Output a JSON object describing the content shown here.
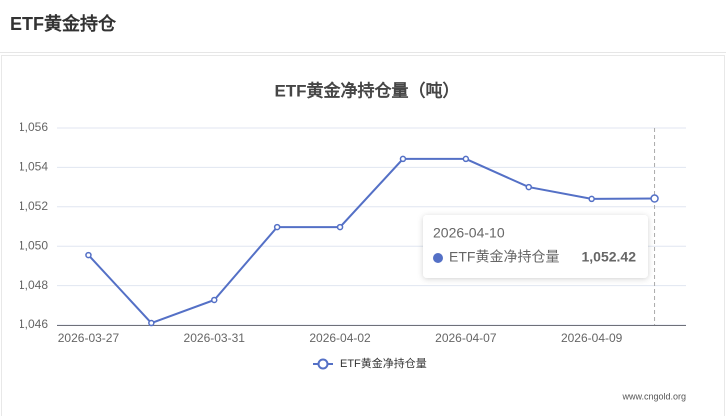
{
  "header": {
    "title": "ETF黄金持仓"
  },
  "chart_data": {
    "type": "line",
    "title": "ETF黄金净持仓量（吨）",
    "categories": [
      "2026-03-27",
      null,
      "2026-03-31",
      null,
      "2026-04-02",
      null,
      "2026-04-07",
      null,
      "2026-04-09",
      null
    ],
    "series": [
      {
        "name": "ETF黄金净持仓量",
        "color": "#5470c6",
        "values": [
          1049.55,
          1046.1,
          1047.27,
          1050.97,
          1050.97,
          1054.43,
          1054.43,
          1053.0,
          1052.4,
          1052.42
        ],
        "value_labels": [
          null,
          null,
          null,
          null,
          null,
          null,
          null,
          null,
          null,
          "1,052.42"
        ]
      }
    ],
    "ylim": [
      1046,
      1056
    ],
    "yticks": [
      {
        "value": 1046,
        "label": "1,046"
      },
      {
        "value": 1048,
        "label": "1,048"
      },
      {
        "value": 1050,
        "label": "1,050"
      },
      {
        "value": 1052,
        "label": "1,052"
      },
      {
        "value": 1054,
        "label": "1,054"
      },
      {
        "value": 1056,
        "label": "1,056"
      }
    ],
    "grid": true,
    "tooltip": {
      "title": "2026-04-10"
    }
  },
  "footer": {
    "source": "www.cngold.org"
  }
}
